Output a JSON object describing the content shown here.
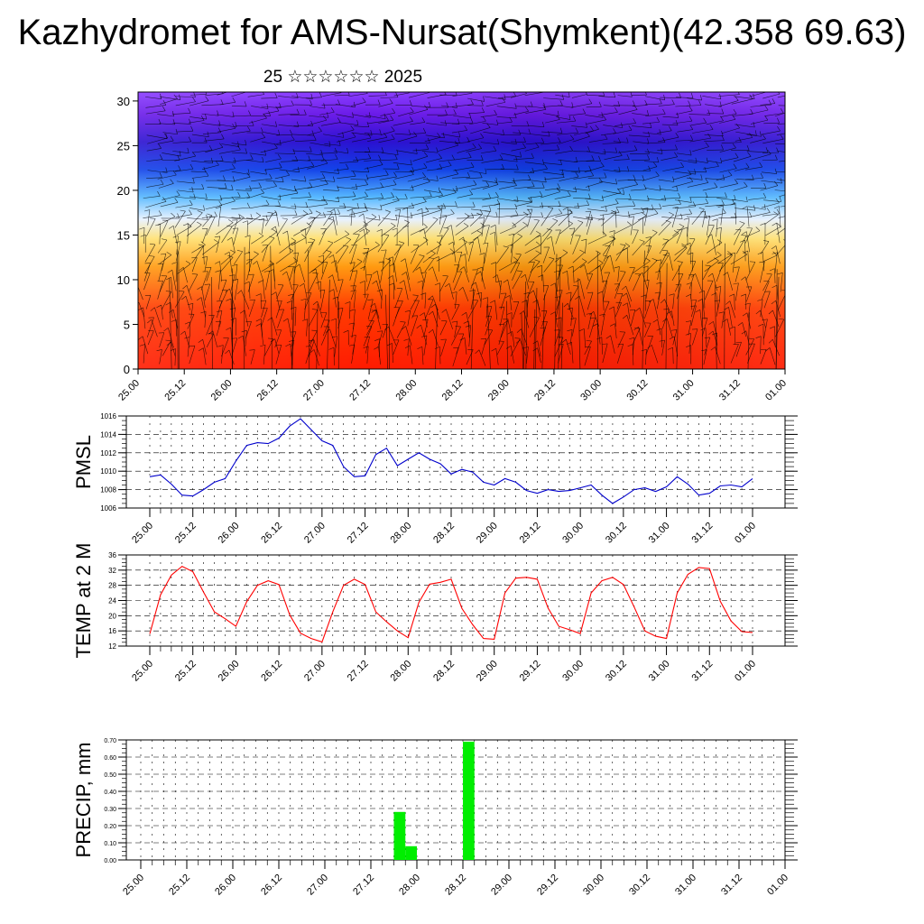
{
  "header": {
    "title": "Kazhydromet for AMS-Nursat(Shymkent)(42.358 69.63)",
    "subtitle": "25 ☆☆☆☆☆☆ 2025"
  },
  "x_tick_labels": [
    "25.00",
    "25.12",
    "26.00",
    "26.12",
    "27.00",
    "27.12",
    "28.00",
    "28.12",
    "29.00",
    "29.12",
    "30.00",
    "30.12",
    "31.00",
    "31.12",
    "01.00"
  ],
  "chart_data": [
    {
      "type": "heatmap",
      "title": "",
      "xlabel": "",
      "ylabel": "",
      "ylim": [
        0,
        31
      ],
      "y_ticks": [
        0,
        5,
        10,
        15,
        20,
        25,
        30
      ],
      "x": [
        "25.00",
        "25.12",
        "26.00",
        "26.12",
        "27.00",
        "27.12",
        "28.00",
        "28.12",
        "29.00",
        "29.12",
        "30.00",
        "30.12",
        "31.00",
        "31.12",
        "01.00"
      ],
      "color_scale": [
        "#ff2a00",
        "#ff8a00",
        "#ffe070",
        "#a8dcff",
        "#1a7cff",
        "#2a1ad8",
        "#6a1ae8",
        "#8a3cff"
      ],
      "overlay": "wind barbs"
    },
    {
      "type": "line",
      "ylabel": "PMSL",
      "ylim": [
        1006,
        1016
      ],
      "y_ticks": [
        1006,
        1008,
        1010,
        1012,
        1014,
        1016
      ],
      "color": "#0000cc",
      "values": [
        1009.4,
        1009.6,
        1008.6,
        1007.4,
        1007.3,
        1008.0,
        1008.8,
        1009.2,
        1011.1,
        1012.8,
        1013.1,
        1013.0,
        1013.6,
        1014.9,
        1015.7,
        1014.5,
        1013.3,
        1012.8,
        1010.5,
        1009.4,
        1009.5,
        1011.8,
        1012.5,
        1010.6,
        1011.3,
        1012.0,
        1011.3,
        1010.8,
        1009.7,
        1010.2,
        1009.9,
        1008.8,
        1008.5,
        1009.2,
        1008.8,
        1007.9,
        1007.6,
        1008.0,
        1007.8,
        1007.9,
        1008.2,
        1008.5,
        1007.4,
        1006.5,
        1007.2,
        1008.0,
        1008.2,
        1007.8,
        1008.3,
        1009.4,
        1008.6,
        1007.4,
        1007.6,
        1008.4,
        1008.5,
        1008.3,
        1009.2
      ]
    },
    {
      "type": "line",
      "ylabel": "TEMP at 2 M",
      "ylim": [
        12,
        36
      ],
      "y_ticks": [
        12,
        16,
        20,
        24,
        28,
        32,
        36
      ],
      "color": "#ff0000",
      "values": [
        15.2,
        25.5,
        30.7,
        33.0,
        31.6,
        26.2,
        21.0,
        19.2,
        17.2,
        23.7,
        28.0,
        29.2,
        28.2,
        20.2,
        15.4,
        14.0,
        13.1,
        21.0,
        28.0,
        29.6,
        28.2,
        21.0,
        18.4,
        16.0,
        14.2,
        23.5,
        28.3,
        28.8,
        29.6,
        21.9,
        17.6,
        14.0,
        13.8,
        26.0,
        29.9,
        30.1,
        29.6,
        22.0,
        17.2,
        16.3,
        15.3,
        26.0,
        29.2,
        30.1,
        28.2,
        22.3,
        16.0,
        14.6,
        14.0,
        26.0,
        30.9,
        32.7,
        32.4,
        23.8,
        18.6,
        15.8,
        15.6
      ]
    },
    {
      "type": "bar",
      "ylabel": "PRECIP, mm",
      "ylim": [
        0,
        0.7
      ],
      "y_ticks": [
        "0.00",
        "0.10",
        "0.20",
        "0.30",
        "0.40",
        "0.50",
        "0.60",
        "0.70"
      ],
      "color": "#00ee00",
      "bars": [
        {
          "x": 22,
          "value": 0.28
        },
        {
          "x": 23,
          "value": 0.08
        },
        {
          "x": 28,
          "value": 0.69
        }
      ]
    }
  ]
}
